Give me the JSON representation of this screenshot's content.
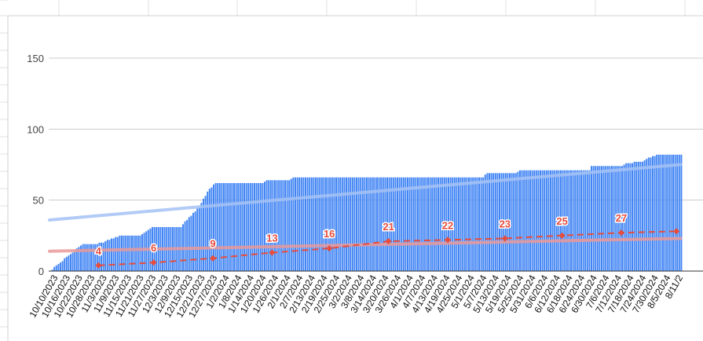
{
  "chart_data": {
    "type": "bar",
    "title": "",
    "xlabel": "",
    "ylabel": "",
    "ylim": [
      0,
      160
    ],
    "yticks": [
      0,
      50,
      100,
      150
    ],
    "grid": true,
    "x_tick_labels": [
      "10/10/2023",
      "10/16/2023",
      "10/22/2023",
      "10/28/2023",
      "11/3/2023",
      "11/9/2023",
      "11/15/2023",
      "11/21/2023",
      "11/27/2023",
      "12/3/2023",
      "12/9/2023",
      "12/15/2023",
      "12/21/2023",
      "12/27/2023",
      "1/2/2024",
      "1/8/2024",
      "1/14/2024",
      "1/20/2024",
      "1/26/2024",
      "2/1/2024",
      "2/7/2024",
      "2/13/2024",
      "2/19/2024",
      "2/25/2024",
      "3/2/2024",
      "3/8/2024",
      "3/14/2024",
      "3/20/2024",
      "3/26/2024",
      "4/1/2024",
      "4/7/2024",
      "4/13/2024",
      "4/19/2024",
      "4/25/2024",
      "5/1/2024",
      "5/7/2024",
      "5/13/2024",
      "5/19/2024",
      "5/25/2024",
      "5/31/2024",
      "6/6/2024",
      "6/12/2024",
      "6/18/2024",
      "6/24/2024",
      "6/30/2024",
      "7/6/2024",
      "7/12/2024",
      "7/18/2024",
      "7/24/2024",
      "7/30/2024",
      "8/5/2024",
      "8/11/2"
    ],
    "series": [
      {
        "kind": "bar",
        "color": "#4285f4",
        "step_points": [
          [
            "10/10/2023",
            0
          ],
          [
            "10/14/2023",
            5
          ],
          [
            "10/20/2023",
            12
          ],
          [
            "10/26/2023",
            19
          ],
          [
            "11/1/2023",
            19
          ],
          [
            "11/5/2023",
            20
          ],
          [
            "11/9/2023",
            23
          ],
          [
            "11/14/2023",
            25
          ],
          [
            "11/23/2023",
            25
          ],
          [
            "11/26/2023",
            28
          ],
          [
            "11/29/2023",
            31
          ],
          [
            "12/13/2023",
            31
          ],
          [
            "12/17/2023",
            38
          ],
          [
            "12/22/2023",
            45
          ],
          [
            "12/26/2023",
            56
          ],
          [
            "12/30/2023",
            62
          ],
          [
            "1/22/2024",
            62
          ],
          [
            "1/24/2024",
            64
          ],
          [
            "2/4/2024",
            64
          ],
          [
            "2/6/2024",
            66
          ],
          [
            "4/28/2024",
            66
          ],
          [
            "5/9/2024",
            66
          ],
          [
            "5/11/2024",
            69
          ],
          [
            "5/25/2024",
            69
          ],
          [
            "5/27/2024",
            71
          ],
          [
            "6/30/2024",
            71
          ],
          [
            "7/1/2024",
            74
          ],
          [
            "7/16/2024",
            74
          ],
          [
            "7/18/2024",
            76
          ],
          [
            "7/26/2024",
            77
          ],
          [
            "7/28/2024",
            79
          ],
          [
            "8/2/2024",
            82
          ],
          [
            "8/14/2024",
            82
          ]
        ]
      },
      {
        "kind": "line-dashed",
        "color": "#e74c3c",
        "points": [
          {
            "x": "11/3/2023",
            "y": 4,
            "label": "4"
          },
          {
            "x": "11/30/2023",
            "y": 6,
            "label": "6"
          },
          {
            "x": "12/29/2023",
            "y": 9,
            "label": "9"
          },
          {
            "x": "1/27/2024",
            "y": 13,
            "label": "13"
          },
          {
            "x": "2/24/2024",
            "y": 16,
            "label": "16"
          },
          {
            "x": "3/24/2024",
            "y": 21,
            "label": "21"
          },
          {
            "x": "4/22/2024",
            "y": 22,
            "label": "22"
          },
          {
            "x": "5/20/2024",
            "y": 23,
            "label": "23"
          },
          {
            "x": "6/17/2024",
            "y": 25,
            "label": "25"
          },
          {
            "x": "7/16/2024",
            "y": 27,
            "label": "27"
          },
          {
            "x": "8/12/2024",
            "y": 28,
            "label": ""
          }
        ]
      },
      {
        "kind": "trendline",
        "color": "#a4c2f4",
        "points": [
          [
            "10/10/2023",
            36
          ],
          [
            "8/14/2024",
            75
          ]
        ]
      },
      {
        "kind": "trendline",
        "color": "#ea9999",
        "points": [
          [
            "10/10/2023",
            14
          ],
          [
            "8/14/2024",
            23
          ]
        ]
      }
    ]
  }
}
